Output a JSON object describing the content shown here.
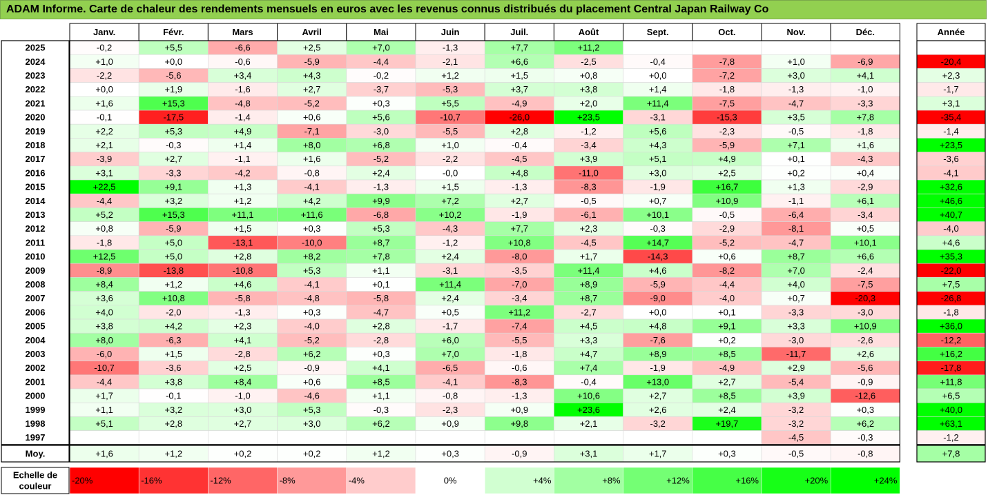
{
  "title": "ADAM Informe. Carte de chaleur des rendements mensuels en euros avec les revenus connus distribués du placement Central Japan Railway Co",
  "chart_data": {
    "type": "heatmap",
    "months": [
      "Janv.",
      "Févr.",
      "Mars",
      "Avril",
      "Mai",
      "Juin",
      "Juil.",
      "Août",
      "Sept.",
      "Oct.",
      "Nov.",
      "Déc."
    ],
    "year_header": "Année",
    "rows": [
      {
        "year": "2025",
        "values": [
          "-0,2",
          "+5,5",
          "-6,6",
          "+2,5",
          "+7,0",
          "-1,3",
          "+7,7",
          "+11,2",
          "",
          "",
          "",
          ""
        ],
        "annual": ""
      },
      {
        "year": "2024",
        "values": [
          "+1,0",
          "+0,0",
          "-0,6",
          "-5,9",
          "-4,4",
          "-2,1",
          "+6,6",
          "-2,5",
          "-0,4",
          "-7,8",
          "+1,0",
          "-6,9"
        ],
        "annual": "-20,4"
      },
      {
        "year": "2023",
        "values": [
          "-2,2",
          "-5,6",
          "+3,4",
          "+4,3",
          "-0,2",
          "+1,2",
          "+1,5",
          "+0,8",
          "+0,0",
          "-7,2",
          "+3,0",
          "+4,1"
        ],
        "annual": "+2,3"
      },
      {
        "year": "2022",
        "values": [
          "+0,0",
          "+1,9",
          "-1,6",
          "+2,7",
          "-3,7",
          "-5,3",
          "+3,7",
          "+3,8",
          "+1,4",
          "-1,8",
          "-1,3",
          "-1,0"
        ],
        "annual": "-1,7"
      },
      {
        "year": "2021",
        "values": [
          "+1,6",
          "+15,3",
          "-4,8",
          "-5,2",
          "+0,3",
          "+5,5",
          "-4,9",
          "+2,0",
          "+11,4",
          "-7,5",
          "-4,7",
          "-3,3"
        ],
        "annual": "+3,1"
      },
      {
        "year": "2020",
        "values": [
          "-0,1",
          "-17,5",
          "-1,4",
          "+0,6",
          "+5,6",
          "-10,7",
          "-26,0",
          "+23,5",
          "-3,1",
          "-15,3",
          "+3,5",
          "+7,8"
        ],
        "annual": "-35,4"
      },
      {
        "year": "2019",
        "values": [
          "+2,2",
          "+5,3",
          "+4,9",
          "-7,1",
          "-3,0",
          "-5,5",
          "+2,8",
          "-1,2",
          "+5,6",
          "-2,3",
          "-0,5",
          "-1,8"
        ],
        "annual": "-1,4"
      },
      {
        "year": "2018",
        "values": [
          "+2,1",
          "-0,3",
          "+1,4",
          "+8,0",
          "+6,8",
          "+1,0",
          "-0,4",
          "-3,4",
          "+4,3",
          "-5,9",
          "+7,1",
          "+1,6"
        ],
        "annual": "+23,5"
      },
      {
        "year": "2017",
        "values": [
          "-3,9",
          "+2,7",
          "-1,1",
          "+1,6",
          "-5,2",
          "-2,2",
          "-4,5",
          "+3,9",
          "+5,1",
          "+4,9",
          "+0,1",
          "-4,3"
        ],
        "annual": "-3,6"
      },
      {
        "year": "2016",
        "values": [
          "+3,1",
          "-3,3",
          "-4,2",
          "-0,8",
          "+2,4",
          "-0,0",
          "+4,8",
          "-11,0",
          "+3,0",
          "+2,5",
          "+0,2",
          "+0,4"
        ],
        "annual": "-4,1"
      },
      {
        "year": "2015",
        "values": [
          "+22,5",
          "+9,1",
          "+1,3",
          "-4,1",
          "-1,3",
          "+1,5",
          "-1,3",
          "-8,3",
          "-1,9",
          "+16,7",
          "+1,3",
          "-2,9"
        ],
        "annual": "+32,6"
      },
      {
        "year": "2014",
        "values": [
          "-4,4",
          "+3,2",
          "+1,2",
          "+4,2",
          "+9,9",
          "+7,2",
          "+2,7",
          "-0,5",
          "+0,7",
          "+10,9",
          "-1,1",
          "+6,1"
        ],
        "annual": "+46,6"
      },
      {
        "year": "2013",
        "values": [
          "+5,2",
          "+15,3",
          "+11,1",
          "+11,6",
          "-6,8",
          "+10,2",
          "-1,9",
          "-6,1",
          "+10,1",
          "-0,5",
          "-6,4",
          "-3,4"
        ],
        "annual": "+40,7"
      },
      {
        "year": "2012",
        "values": [
          "+0,8",
          "-5,9",
          "+1,5",
          "+0,3",
          "+5,3",
          "-4,3",
          "+7,7",
          "+2,3",
          "-0,3",
          "-2,9",
          "-8,1",
          "+0,5"
        ],
        "annual": "-4,0"
      },
      {
        "year": "2011",
        "values": [
          "-1,8",
          "+5,0",
          "-13,1",
          "-10,0",
          "+8,7",
          "-1,2",
          "+10,8",
          "-4,5",
          "+14,7",
          "-5,2",
          "-4,7",
          "+10,1"
        ],
        "annual": "+4,6"
      },
      {
        "year": "2010",
        "values": [
          "+12,5",
          "+5,0",
          "+2,8",
          "+8,2",
          "+7,8",
          "+2,4",
          "-8,0",
          "+1,7",
          "-14,3",
          "+0,6",
          "+8,7",
          "+6,6"
        ],
        "annual": "+35,3"
      },
      {
        "year": "2009",
        "values": [
          "-8,9",
          "-13,8",
          "-10,8",
          "+5,3",
          "+1,1",
          "-3,1",
          "-3,5",
          "+11,4",
          "+4,6",
          "-8,2",
          "+7,0",
          "-2,4"
        ],
        "annual": "-22,0"
      },
      {
        "year": "2008",
        "values": [
          "+8,4",
          "+1,2",
          "+4,6",
          "-4,1",
          "+0,1",
          "+11,4",
          "-7,0",
          "+8,9",
          "-5,9",
          "-4,4",
          "+4,0",
          "-7,5"
        ],
        "annual": "+7,5"
      },
      {
        "year": "2007",
        "values": [
          "+3,6",
          "+10,8",
          "-5,8",
          "-4,8",
          "-5,8",
          "+2,4",
          "-3,4",
          "+8,7",
          "-9,0",
          "-4,0",
          "+0,7",
          "-20,3"
        ],
        "annual": "-26,8"
      },
      {
        "year": "2006",
        "values": [
          "+4,0",
          "-2,0",
          "-1,3",
          "+0,3",
          "-4,7",
          "+0,5",
          "+11,2",
          "-2,7",
          "+0,0",
          "+0,1",
          "-3,3",
          "-3,0"
        ],
        "annual": "-1,8"
      },
      {
        "year": "2005",
        "values": [
          "+3,8",
          "+4,2",
          "+2,3",
          "-4,0",
          "+2,8",
          "-1,7",
          "-7,4",
          "+4,5",
          "+4,8",
          "+9,1",
          "+3,3",
          "+10,9"
        ],
        "annual": "+36,0"
      },
      {
        "year": "2004",
        "values": [
          "+8,0",
          "-6,3",
          "+4,1",
          "-5,2",
          "-2,8",
          "+6,0",
          "-5,5",
          "+3,3",
          "-7,6",
          "+0,2",
          "-3,0",
          "-2,6"
        ],
        "annual": "-12,2"
      },
      {
        "year": "2003",
        "values": [
          "-6,0",
          "+1,5",
          "-2,8",
          "+6,2",
          "+0,3",
          "+7,0",
          "-1,8",
          "+4,7",
          "+8,9",
          "+8,5",
          "-11,7",
          "+2,6"
        ],
        "annual": "+16,2"
      },
      {
        "year": "2002",
        "values": [
          "-10,7",
          "-3,6",
          "+2,5",
          "-0,9",
          "+4,1",
          "-6,5",
          "-0,6",
          "+7,4",
          "-1,9",
          "-4,9",
          "+2,9",
          "-5,6"
        ],
        "annual": "-17,8"
      },
      {
        "year": "2001",
        "values": [
          "-4,4",
          "+3,8",
          "+8,4",
          "+0,6",
          "+8,5",
          "-4,1",
          "-8,3",
          "-0,4",
          "+13,0",
          "+2,7",
          "-5,4",
          "-0,9"
        ],
        "annual": "+11,8"
      },
      {
        "year": "2000",
        "values": [
          "+1,7",
          "-0,1",
          "-1,0",
          "-4,6",
          "+1,1",
          "-0,8",
          "-1,3",
          "+10,6",
          "+2,7",
          "+8,5",
          "+3,9",
          "-12,6"
        ],
        "annual": "+6,5"
      },
      {
        "year": "1999",
        "values": [
          "+1,1",
          "+3,2",
          "+3,0",
          "+5,3",
          "-0,3",
          "-2,3",
          "+0,9",
          "+23,6",
          "+2,6",
          "+2,4",
          "-3,2",
          "+0,3"
        ],
        "annual": "+40,0"
      },
      {
        "year": "1998",
        "values": [
          "+5,1",
          "+2,8",
          "+2,7",
          "+3,0",
          "+6,2",
          "+0,9",
          "+9,8",
          "+2,1",
          "-3,2",
          "+19,7",
          "-3,2",
          "+6,2"
        ],
        "annual": "+63,1"
      },
      {
        "year": "1997",
        "values": [
          "",
          "",
          "",
          "",
          "",
          "",
          "",
          "",
          "",
          "",
          "-4,5",
          "-0,3"
        ],
        "annual": "-1,2"
      }
    ],
    "average": {
      "label": "Moy.",
      "values": [
        "+1,6",
        "+1,2",
        "+0,2",
        "+0,2",
        "+1,2",
        "+0,3",
        "-0,9",
        "+3,1",
        "+1,7",
        "+0,3",
        "-0,5",
        "-0,8"
      ],
      "annual": "+7,8"
    },
    "scale": {
      "label_line1": "Echelle de",
      "label_line2": "couleur",
      "items": [
        {
          "label": "-20%",
          "value": -20
        },
        {
          "label": "-16%",
          "value": -16
        },
        {
          "label": "-12%",
          "value": -12
        },
        {
          "label": "-8%",
          "value": -8
        },
        {
          "label": "-4%",
          "value": -4
        },
        {
          "label": "0%",
          "value": 0
        },
        {
          "label": "+4%",
          "value": 4
        },
        {
          "label": "+8%",
          "value": 8
        },
        {
          "label": "+12%",
          "value": 12
        },
        {
          "label": "+16%",
          "value": 16
        },
        {
          "label": "+20%",
          "value": 20
        },
        {
          "label": "+24%",
          "value": 24
        }
      ]
    },
    "colors": {
      "title_bg": "#92d050",
      "negative_max": "#ff0000",
      "neutral": "#ffffff",
      "positive_max": "#00ff00"
    }
  }
}
